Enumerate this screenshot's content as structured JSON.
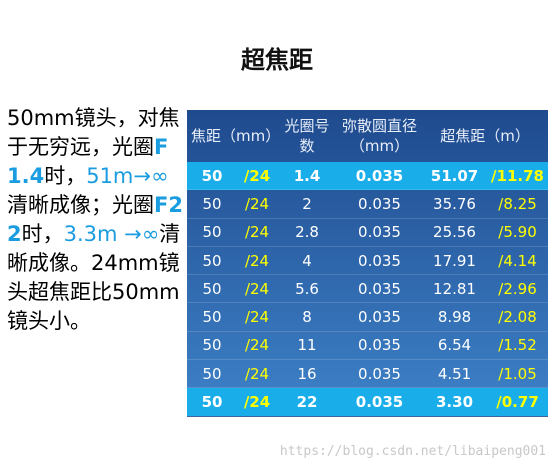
{
  "title": "超焦距",
  "left_text": {
    "runs": [
      "50mm镜头，对焦于无穷远，",
      "光圈",
      "F1.4",
      "时，",
      "51m→∞",
      "清晰成像；",
      "光圈",
      "F22",
      "时，",
      "3.3m →∞",
      "清晰成像。",
      "24mm镜头超焦距比50mm镜头小。"
    ]
  },
  "table": {
    "header": [
      "焦距（mm）",
      "光圈号数",
      "弥散圆直径（mm）",
      "超焦距（m）"
    ],
    "rows": [
      [
        "50",
        "/24",
        "1.4",
        "0.035",
        "51.07",
        "/11.78"
      ],
      [
        "50",
        "/24",
        "2",
        "0.035",
        "35.76",
        "/8.25"
      ],
      [
        "50",
        "/24",
        "2.8",
        "0.035",
        "25.56",
        "/5.90"
      ],
      [
        "50",
        "/24",
        "4",
        "0.035",
        "17.91",
        "/4.14"
      ],
      [
        "50",
        "/24",
        "5.6",
        "0.035",
        "12.81",
        "/2.96"
      ],
      [
        "50",
        "/24",
        "8",
        "0.035",
        "8.98",
        "/2.08"
      ],
      [
        "50",
        "/24",
        "11",
        "0.035",
        "6.54",
        "/1.52"
      ],
      [
        "50",
        "/24",
        "16",
        "0.035",
        "4.51",
        "/1.05"
      ],
      [
        "50",
        "/24",
        "22",
        "0.035",
        "3.30",
        "/0.77"
      ]
    ]
  },
  "watermark": "https://blog.csdn.net/libaipeng001"
}
